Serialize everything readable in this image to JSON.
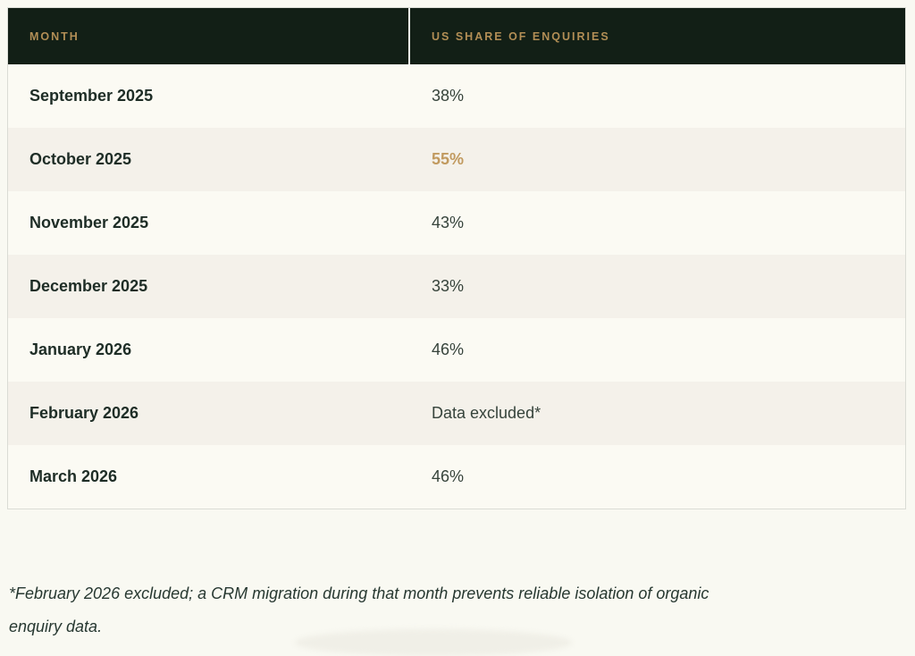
{
  "table": {
    "columns": [
      {
        "label": "MONTH"
      },
      {
        "label": "US SHARE OF ENQUIRIES"
      }
    ],
    "rows": [
      {
        "month": "September 2025",
        "value": "38%",
        "highlight": false
      },
      {
        "month": "October 2025",
        "value": "55%",
        "highlight": true
      },
      {
        "month": "November 2025",
        "value": "43%",
        "highlight": false
      },
      {
        "month": "December 2025",
        "value": "33%",
        "highlight": false
      },
      {
        "month": "January 2026",
        "value": "46%",
        "highlight": false
      },
      {
        "month": "February 2026",
        "value": "Data excluded*",
        "highlight": false
      },
      {
        "month": "March 2026",
        "value": "46%",
        "highlight": false
      }
    ]
  },
  "footnote": "*February 2026 excluded; a CRM migration during that month prevents reliable isolation of organic enquiry data.",
  "footnote_lines": [
    "*February 2026 excluded; a CRM migration during that month prevents reliable isolation of organic",
    "enquiry data."
  ],
  "colors": {
    "page_bg": "#f9f9f2",
    "header_bg": "#121f16",
    "header_text": "#b28e55",
    "highlight_value": "#c19a5f",
    "row_bg": "#fbfaf3",
    "row_alt_bg": "#f4f1ea",
    "month_text": "#1e2d26",
    "value_text": "#36433b",
    "border": "#dadcd5",
    "footnote_text": "#273831"
  }
}
